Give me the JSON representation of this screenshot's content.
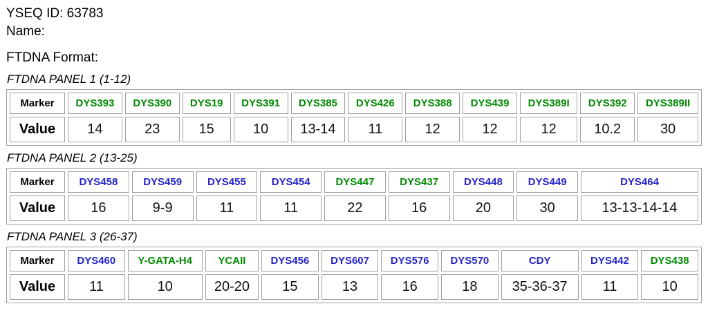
{
  "header": {
    "yseq_id": "YSEQ ID: 63783",
    "name": "Name:",
    "format": "FTDNA Format:"
  },
  "table_headers": {
    "marker": "Marker",
    "value": "Value"
  },
  "colors": {
    "green": "#008A00",
    "blue": "#2323C8",
    "table_border": "#9E9E9E"
  },
  "panels": [
    {
      "title": "FTDNA PANEL 1 (1-12)",
      "markers": [
        {
          "name": "DYS393",
          "color": "green",
          "value": "14"
        },
        {
          "name": "DYS390",
          "color": "green",
          "value": "23"
        },
        {
          "name": "DYS19",
          "color": "green",
          "value": "15"
        },
        {
          "name": "DYS391",
          "color": "green",
          "value": "10"
        },
        {
          "name": "DYS385",
          "color": "green",
          "value": "13-14"
        },
        {
          "name": "DYS426",
          "color": "green",
          "value": "11"
        },
        {
          "name": "DYS388",
          "color": "green",
          "value": "12"
        },
        {
          "name": "DYS439",
          "color": "green",
          "value": "12"
        },
        {
          "name": "DYS389I",
          "color": "green",
          "value": "12"
        },
        {
          "name": "DYS392",
          "color": "green",
          "value": "10.2"
        },
        {
          "name": "DYS389II",
          "color": "green",
          "value": "30"
        }
      ]
    },
    {
      "title": "FTDNA PANEL 2 (13-25)",
      "markers": [
        {
          "name": "DYS458",
          "color": "blue",
          "value": "16"
        },
        {
          "name": "DYS459",
          "color": "blue",
          "value": "9-9"
        },
        {
          "name": "DYS455",
          "color": "blue",
          "value": "11"
        },
        {
          "name": "DYS454",
          "color": "blue",
          "value": "11"
        },
        {
          "name": "DYS447",
          "color": "green",
          "value": "22"
        },
        {
          "name": "DYS437",
          "color": "green",
          "value": "16"
        },
        {
          "name": "DYS448",
          "color": "blue",
          "value": "20"
        },
        {
          "name": "DYS449",
          "color": "blue",
          "value": "30"
        },
        {
          "name": "DYS464",
          "color": "blue",
          "value": "13-13-14-14"
        }
      ]
    },
    {
      "title": "FTDNA PANEL 3 (26-37)",
      "markers": [
        {
          "name": "DYS460",
          "color": "blue",
          "value": "11"
        },
        {
          "name": "Y-GATA-H4",
          "color": "green",
          "value": "10"
        },
        {
          "name": "YCAII",
          "color": "green",
          "value": "20-20"
        },
        {
          "name": "DYS456",
          "color": "blue",
          "value": "15"
        },
        {
          "name": "DYS607",
          "color": "blue",
          "value": "13"
        },
        {
          "name": "DYS576",
          "color": "blue",
          "value": "16"
        },
        {
          "name": "DYS570",
          "color": "blue",
          "value": "18"
        },
        {
          "name": "CDY",
          "color": "blue",
          "value": "35-36-37"
        },
        {
          "name": "DYS442",
          "color": "blue",
          "value": "11"
        },
        {
          "name": "DYS438",
          "color": "green",
          "value": "10"
        }
      ]
    }
  ]
}
